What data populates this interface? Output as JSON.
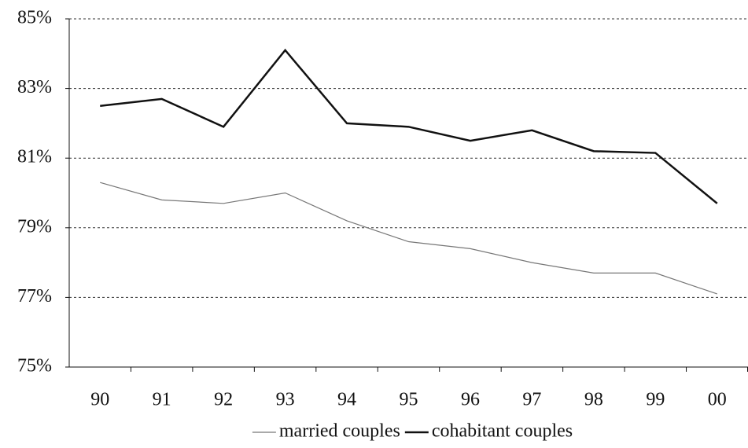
{
  "chart_data": {
    "type": "line",
    "categories": [
      "90",
      "91",
      "92",
      "93",
      "94",
      "95",
      "96",
      "97",
      "98",
      "99",
      "00"
    ],
    "series": [
      {
        "name": "married couples",
        "color": "#777777",
        "width": 1.2,
        "values": [
          80.3,
          79.8,
          79.7,
          80.0,
          79.2,
          78.6,
          78.4,
          78.0,
          77.7,
          77.7,
          77.1
        ]
      },
      {
        "name": "cohabitant couples",
        "color": "#111111",
        "width": 2.5,
        "values": [
          82.5,
          82.7,
          81.9,
          84.1,
          82.0,
          81.9,
          81.5,
          81.8,
          81.2,
          81.15,
          79.7
        ]
      }
    ],
    "ylim": [
      75,
      85
    ],
    "yticks": [
      {
        "value": 75,
        "label": "75%"
      },
      {
        "value": 77,
        "label": "77%"
      },
      {
        "value": 79,
        "label": "79%"
      },
      {
        "value": 81,
        "label": "81%"
      },
      {
        "value": 83,
        "label": "83%"
      },
      {
        "value": 85,
        "label": "85%"
      }
    ],
    "grid": true,
    "legend": "bottom"
  }
}
